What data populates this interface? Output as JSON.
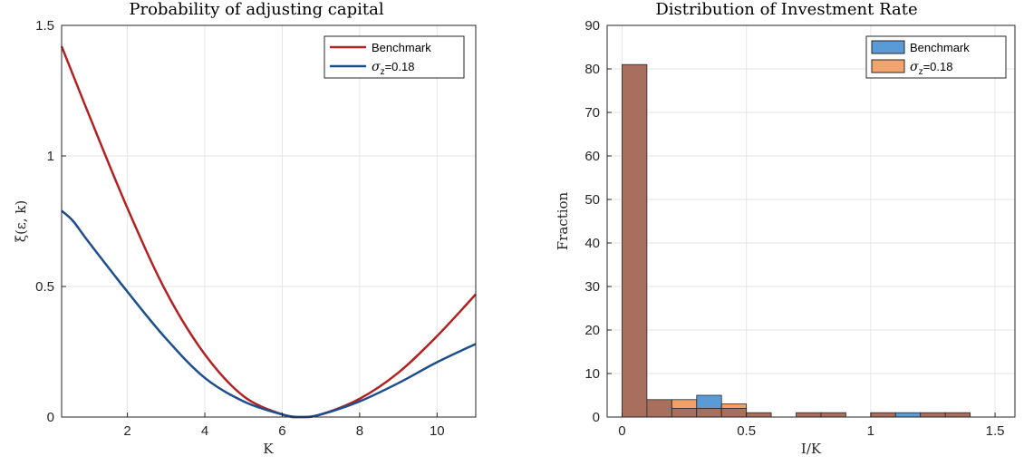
{
  "chart_data": [
    {
      "type": "line",
      "title": "Probability of adjusting capital",
      "xlabel": "K",
      "ylabel": "ξ(ε, k)",
      "xlim": [
        0.3,
        11
      ],
      "ylim": [
        0,
        1.5
      ],
      "xticks": [
        "2",
        "4",
        "6",
        "8",
        "10"
      ],
      "yticks": [
        "0",
        "0.5",
        "1",
        "1.5"
      ],
      "grid": true,
      "legend_position": "top-right",
      "colors": {
        "Benchmark": "#b22222",
        "sigma": "#1f4e8c"
      },
      "series": [
        {
          "name": "Benchmark",
          "x": [
            0.3,
            1,
            2,
            3,
            4,
            5,
            6,
            6.5,
            7,
            8,
            9,
            10,
            11
          ],
          "y": [
            1.42,
            1.16,
            0.8,
            0.48,
            0.24,
            0.08,
            0.01,
            0.0,
            0.01,
            0.07,
            0.17,
            0.31,
            0.47
          ]
        },
        {
          "name_prefix": "σ",
          "name_sub": "z",
          "name_suffix": "=0.18",
          "x": [
            0.3,
            0.6,
            1,
            2,
            3,
            4,
            5,
            6,
            6.5,
            7,
            8,
            9,
            10,
            11
          ],
          "y": [
            0.79,
            0.75,
            0.67,
            0.48,
            0.3,
            0.15,
            0.06,
            0.01,
            0.0,
            0.01,
            0.06,
            0.13,
            0.21,
            0.28
          ]
        }
      ]
    },
    {
      "type": "bar",
      "title": "Distribution of Investment Rate",
      "xlabel": "I/K",
      "ylabel": "Fraction",
      "xlim": [
        -0.06,
        1.58
      ],
      "ylim": [
        0,
        90
      ],
      "xticks": [
        "0",
        "0.5",
        "1",
        "1.5"
      ],
      "yticks": [
        "0",
        "10",
        "20",
        "30",
        "40",
        "50",
        "60",
        "70",
        "80",
        "90"
      ],
      "grid": true,
      "legend_position": "top-right",
      "bin_width": 0.1,
      "colors": {
        "Benchmark": "#5b9bd5",
        "sigma": "#ed7d31",
        "overlap": "#a86e5e"
      },
      "categories": [
        "0-0.1",
        "0.1-0.2",
        "0.2-0.3",
        "0.3-0.4",
        "0.4-0.5",
        "0.5-0.6",
        "0.6-0.7",
        "0.7-0.8",
        "0.8-0.9",
        "0.9-1.0",
        "1.0-1.1",
        "1.1-1.2",
        "1.2-1.3",
        "1.3-1.4"
      ],
      "series": [
        {
          "name": "Benchmark",
          "values": [
            81,
            4,
            2,
            5,
            2,
            1,
            0,
            1,
            1,
            0,
            1,
            1,
            1,
            1
          ]
        },
        {
          "name_prefix": "σ",
          "name_sub": "z",
          "name_suffix": "=0.18",
          "values": [
            81,
            4,
            4,
            2,
            3,
            1,
            0,
            1,
            1,
            0,
            1,
            0,
            1,
            1
          ]
        }
      ]
    }
  ]
}
